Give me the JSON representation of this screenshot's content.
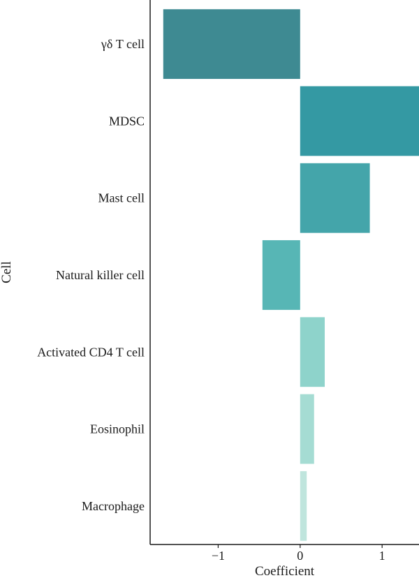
{
  "chart_data": {
    "type": "bar",
    "orientation": "horizontal",
    "xlabel": "Coefficient",
    "ylabel": "Cell",
    "xlim": [
      -1.83,
      1.45
    ],
    "x_ticks": [
      -1,
      0,
      1
    ],
    "x_tick_labels": [
      "−1",
      "0",
      "1"
    ],
    "grid": false,
    "categories": [
      "γδ T cell",
      "MDSC",
      "Mast cell",
      "Natural killer cell",
      "Activated CD4 T cell",
      "Eosinophil",
      "Macrophage"
    ],
    "values": [
      -1.67,
      1.46,
      0.85,
      -0.46,
      0.3,
      0.17,
      0.08
    ],
    "colors": [
      "#3e8a92",
      "#3499a3",
      "#44a5aa",
      "#57b6b5",
      "#8ed3cb",
      "#a5dcd3",
      "#bfe5dd"
    ]
  }
}
